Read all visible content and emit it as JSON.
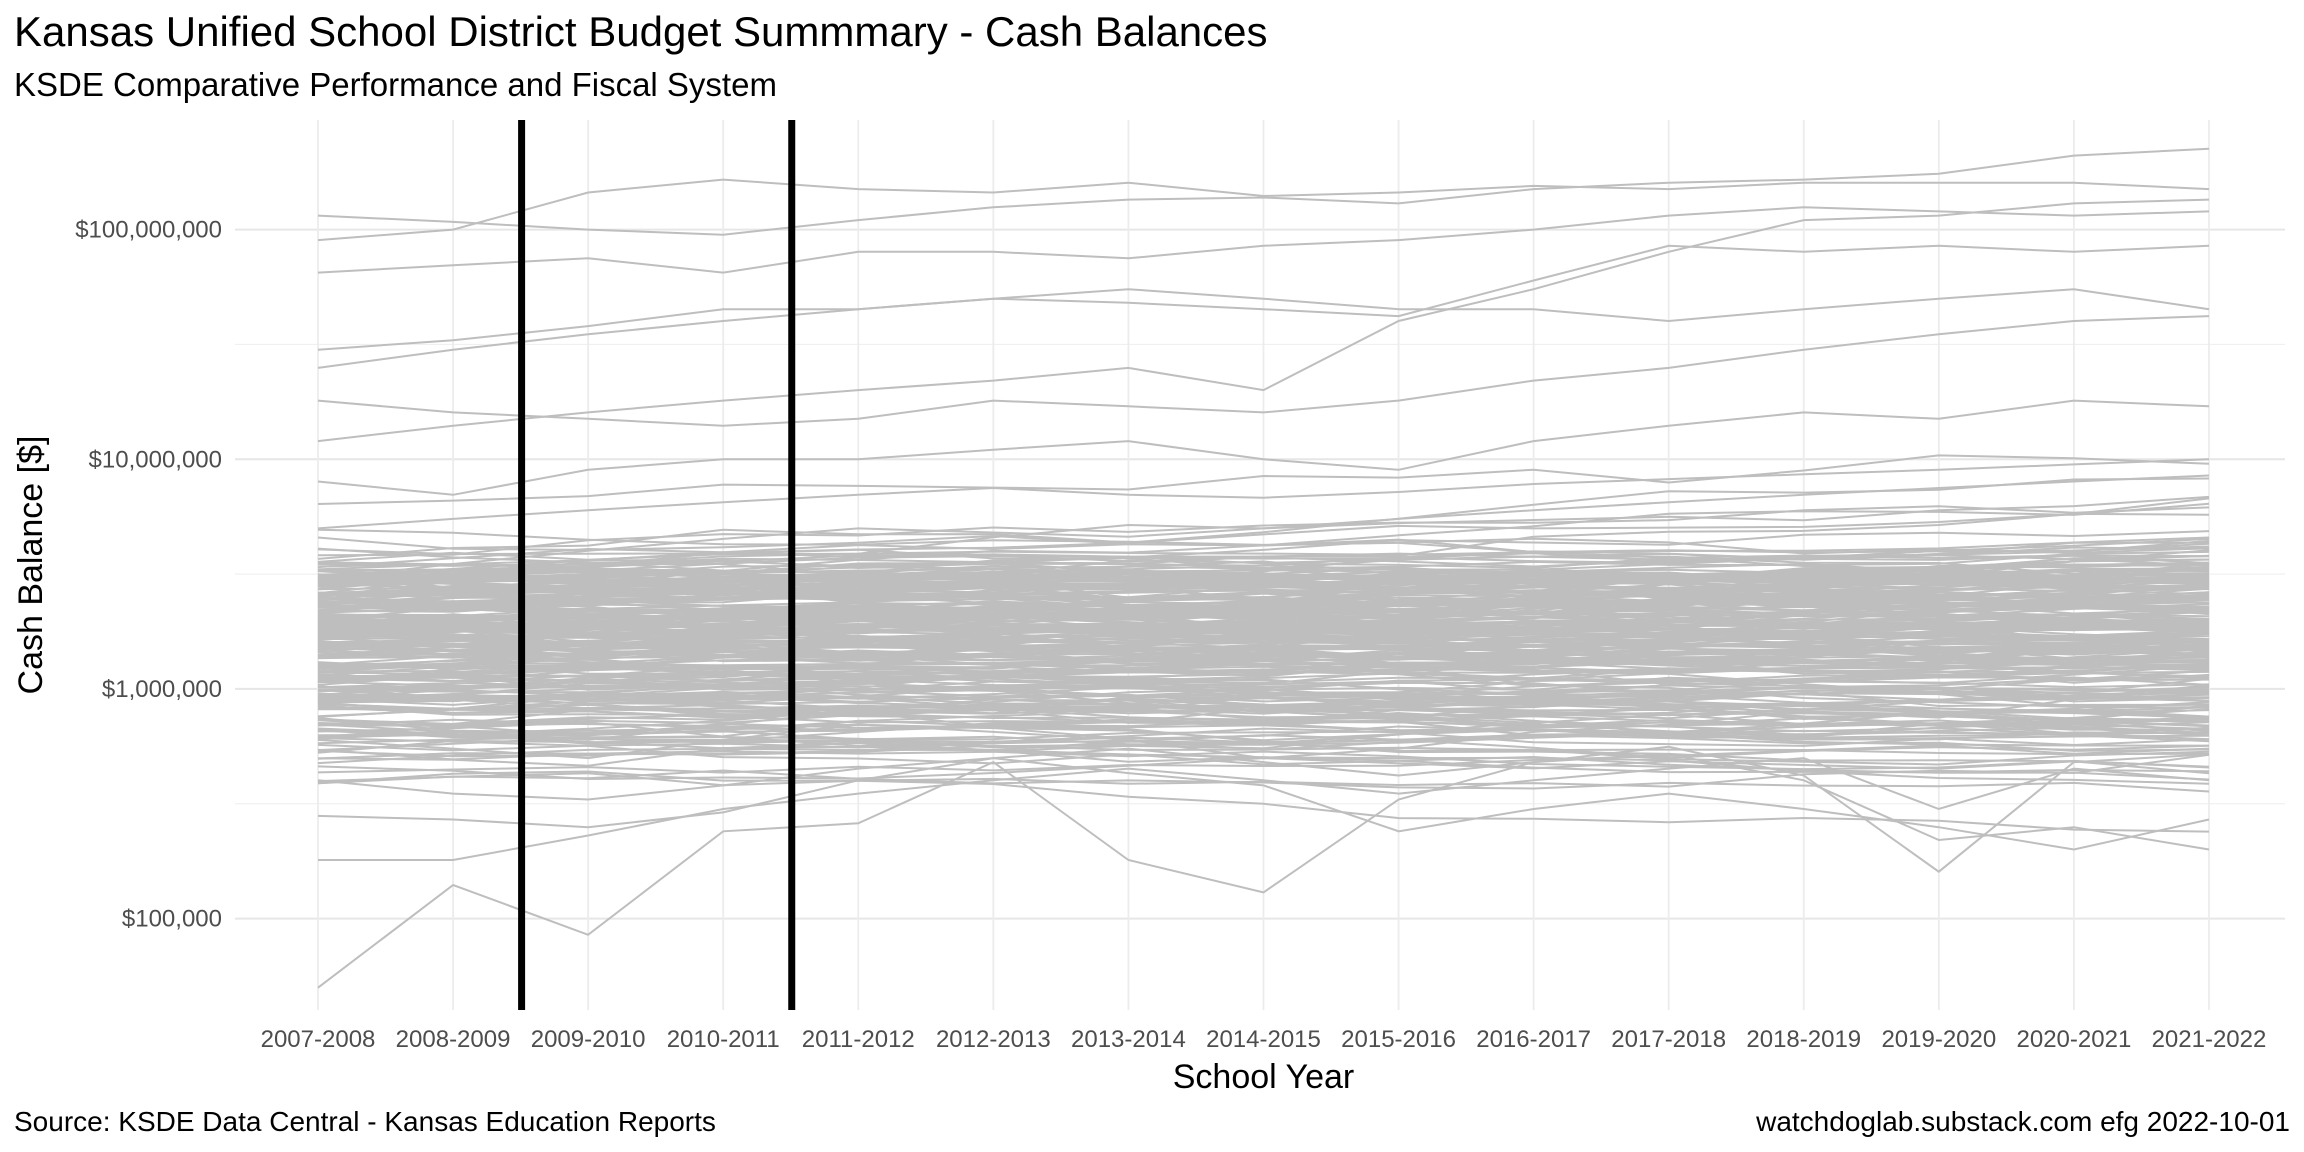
{
  "title": "Kansas Unified School District Budget Summmary - Cash Balances",
  "subtitle": "KSDE Comparative Performance and Fiscal System",
  "caption_left": "Source:  KSDE Data Central - Kansas Education Reports",
  "caption_right": "watchdoglab.substack.com  efg 2022-10-01",
  "chart_data": {
    "type": "line",
    "title": "Kansas Unified School District Budget Summmary - Cash Balances",
    "subtitle": "KSDE Comparative Performance and Fiscal System",
    "xlabel": "School Year",
    "ylabel": "Cash Balance [$]",
    "y_scale": "log10",
    "ylim": [
      40000,
      300000000
    ],
    "y_ticks": [
      100000,
      1000000,
      10000000,
      100000000
    ],
    "y_tick_labels": [
      "$100,000",
      "$1,000,000",
      "$10,000,000",
      "$100,000,000"
    ],
    "categories": [
      "2007-2008",
      "2008-2009",
      "2009-2010",
      "2010-2011",
      "2011-2012",
      "2012-2013",
      "2013-2014",
      "2014-2015",
      "2015-2016",
      "2016-2017",
      "2017-2018",
      "2018-2019",
      "2019-2020",
      "2020-2021",
      "2021-2022"
    ],
    "vertical_reference_lines_between": [
      [
        "2008-2009",
        "2009-2010"
      ],
      [
        "2010-2011",
        "2011-2012"
      ]
    ],
    "line_color": "#bebebe",
    "reference_line_color": "#000000",
    "grid": true,
    "legend": "none",
    "series_note": "one gray line per unified school district (~286 districts)",
    "series": [
      {
        "values": [
          115000000,
          108000000,
          100000000,
          95000000,
          110000000,
          125000000,
          135000000,
          138000000,
          130000000,
          150000000,
          160000000,
          165000000,
          175000000,
          210000000,
          225000000
        ]
      },
      {
        "values": [
          90000000,
          100000000,
          145000000,
          165000000,
          150000000,
          145000000,
          160000000,
          140000000,
          145000000,
          155000000,
          150000000,
          160000000,
          160000000,
          160000000,
          150000000
        ]
      },
      {
        "values": [
          65000000,
          70000000,
          75000000,
          65000000,
          80000000,
          80000000,
          75000000,
          85000000,
          90000000,
          100000000,
          115000000,
          125000000,
          120000000,
          115000000,
          120000000
        ]
      },
      {
        "values": [
          25000000,
          30000000,
          35000000,
          40000000,
          45000000,
          50000000,
          55000000,
          50000000,
          45000000,
          45000000,
          40000000,
          45000000,
          50000000,
          55000000,
          45000000
        ]
      },
      {
        "values": [
          30000000,
          33000000,
          38000000,
          45000000,
          45000000,
          50000000,
          48000000,
          45000000,
          42000000,
          60000000,
          85000000,
          80000000,
          85000000,
          80000000,
          85000000
        ]
      },
      {
        "values": [
          12000000,
          14000000,
          16000000,
          18000000,
          20000000,
          22000000,
          25000000,
          20000000,
          40000000,
          55000000,
          80000000,
          110000000,
          115000000,
          130000000,
          135000000
        ]
      },
      {
        "values": [
          18000000,
          16000000,
          15000000,
          14000000,
          15000000,
          18000000,
          17000000,
          16000000,
          18000000,
          22000000,
          25000000,
          30000000,
          35000000,
          40000000,
          42000000
        ]
      },
      {
        "values": [
          8000000,
          7000000,
          9000000,
          10000000,
          10000000,
          11000000,
          12000000,
          10000000,
          9000000,
          12000000,
          14000000,
          16000000,
          15000000,
          18000000,
          17000000
        ]
      },
      {
        "values": [
          3000000,
          3500000,
          4000000,
          4500000,
          5000000,
          4800000,
          4600000,
          5000000,
          5500000,
          6000000,
          6500000,
          7000000,
          7500000,
          8000000,
          8500000
        ]
      },
      {
        "values": [
          1500000,
          1700000,
          1900000,
          2100000,
          2300000,
          2200000,
          2100000,
          2400000,
          2600000,
          2800000,
          3000000,
          3200000,
          3400000,
          3600000,
          3800000
        ]
      },
      {
        "values": [
          900000,
          950000,
          1000000,
          1100000,
          1200000,
          1150000,
          1100000,
          1050000,
          1200000,
          1300000,
          1400000,
          1500000,
          1600000,
          1700000,
          1800000
        ]
      },
      {
        "values": [
          600000,
          550000,
          500000,
          600000,
          700000,
          650000,
          600000,
          500000,
          550000,
          650000,
          700000,
          800000,
          750000,
          900000,
          1000000
        ]
      },
      {
        "values": [
          50000,
          140000,
          85000,
          240000,
          260000,
          480000,
          180000,
          130000,
          330000,
          480000,
          560000,
          420000,
          160000,
          480000,
          520000
        ]
      },
      {
        "values": [
          180000,
          180000,
          230000,
          300000,
          350000,
          400000,
          450000,
          400000,
          350000,
          400000,
          450000,
          500000,
          300000,
          450000,
          400000
        ]
      },
      {
        "values": [
          280000,
          270000,
          250000,
          290000,
          400000,
          500000,
          430000,
          380000,
          240000,
          300000,
          350000,
          300000,
          250000,
          200000,
          270000
        ]
      },
      {
        "values": [
          400000,
          350000,
          330000,
          380000,
          450000,
          500000,
          550000,
          480000,
          420000,
          480000,
          520000,
          400000,
          220000,
          250000,
          200000
        ]
      },
      {
        "values": [
          700000,
          650000,
          600000,
          700000,
          800000,
          900000,
          850000,
          800000,
          750000,
          850000,
          900000,
          950000,
          1000000,
          1100000,
          1200000
        ]
      },
      {
        "values": [
          2500000,
          2400000,
          2300000,
          2600000,
          2800000,
          3000000,
          3200000,
          3100000,
          3000000,
          3300000,
          3500000,
          3700000,
          4000000,
          4200000,
          4500000
        ]
      },
      {
        "values": [
          5000000,
          5500000,
          6000000,
          6500000,
          7000000,
          7500000,
          7000000,
          6800000,
          7200000,
          7800000,
          8200000,
          8600000,
          9000000,
          9500000,
          10000000
        ]
      },
      {
        "values": [
          2000000,
          1800000,
          1600000,
          1900000,
          2100000,
          2300000,
          2200000,
          2000000,
          2100000,
          2400000,
          2600000,
          2800000,
          2700000,
          2900000,
          3100000
        ]
      }
    ]
  }
}
